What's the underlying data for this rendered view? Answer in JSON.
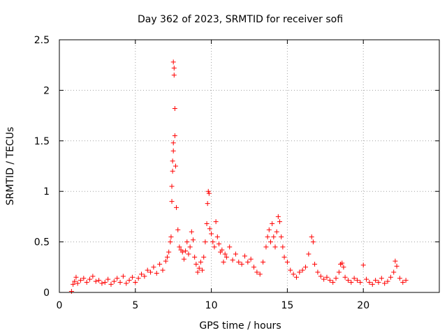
{
  "chart_data": {
    "type": "scatter",
    "title": "Day 362 of 2023, SRMTID for receiver sofi",
    "xlabel": "GPS time / hours",
    "ylabel": "SRMTID / TECUs",
    "xlim": [
      0,
      25
    ],
    "ylim": [
      0,
      2.5
    ],
    "xticks": [
      0,
      5,
      10,
      15,
      20
    ],
    "xtick_labels": [
      "0",
      "5",
      "10",
      "15",
      "20"
    ],
    "yticks": [
      0,
      0.5,
      1,
      1.5,
      2,
      2.5
    ],
    "ytick_labels": [
      "0",
      "0.5",
      "1",
      "1.5",
      "2",
      "2.5"
    ],
    "grid": true,
    "marker": "+",
    "color": "#ff0000",
    "series": [
      {
        "name": "SRMTID",
        "x": [
          0.8,
          0.9,
          1.0,
          1.1,
          1.2,
          1.4,
          1.6,
          1.8,
          2.0,
          2.2,
          2.4,
          2.6,
          2.8,
          3.0,
          3.2,
          3.4,
          3.6,
          3.8,
          4.0,
          4.2,
          4.4,
          4.6,
          4.8,
          5.0,
          5.2,
          5.4,
          5.6,
          5.8,
          6.0,
          6.2,
          6.4,
          6.6,
          6.8,
          7.0,
          7.1,
          7.2,
          7.3,
          7.35,
          7.4,
          7.4,
          7.45,
          7.45,
          7.5,
          7.5,
          7.5,
          7.55,
          7.55,
          7.6,
          7.6,
          7.65,
          7.7,
          7.8,
          7.9,
          8.0,
          8.1,
          8.2,
          8.3,
          8.4,
          8.5,
          8.6,
          8.7,
          8.8,
          8.9,
          9.0,
          9.1,
          9.2,
          9.3,
          9.4,
          9.5,
          9.6,
          9.7,
          9.75,
          9.8,
          9.85,
          9.9,
          10.0,
          10.1,
          10.2,
          10.3,
          10.4,
          10.5,
          10.6,
          10.7,
          10.8,
          10.9,
          11.0,
          11.2,
          11.4,
          11.6,
          11.8,
          12.0,
          12.2,
          12.4,
          12.6,
          12.8,
          13.0,
          13.2,
          13.4,
          13.6,
          13.7,
          13.8,
          13.9,
          14.0,
          14.1,
          14.2,
          14.3,
          14.4,
          14.5,
          14.6,
          14.7,
          14.8,
          15.0,
          15.2,
          15.4,
          15.6,
          15.8,
          16.0,
          16.2,
          16.4,
          16.6,
          16.7,
          16.8,
          17.0,
          17.2,
          17.4,
          17.6,
          17.8,
          18.0,
          18.2,
          18.4,
          18.5,
          18.6,
          18.7,
          18.8,
          19.0,
          19.2,
          19.4,
          19.6,
          19.8,
          20.0,
          20.2,
          20.4,
          20.6,
          20.8,
          21.0,
          21.2,
          21.4,
          21.6,
          21.8,
          22.0,
          22.1,
          22.2,
          22.4,
          22.6,
          22.8
        ],
        "y": [
          0.01,
          0.08,
          0.11,
          0.15,
          0.09,
          0.12,
          0.14,
          0.1,
          0.13,
          0.16,
          0.11,
          0.12,
          0.09,
          0.1,
          0.13,
          0.08,
          0.11,
          0.14,
          0.1,
          0.16,
          0.09,
          0.12,
          0.15,
          0.1,
          0.14,
          0.18,
          0.16,
          0.22,
          0.2,
          0.25,
          0.19,
          0.28,
          0.22,
          0.31,
          0.35,
          0.4,
          0.5,
          0.55,
          0.9,
          1.05,
          1.2,
          1.3,
          1.4,
          1.48,
          2.28,
          2.22,
          2.15,
          1.82,
          1.55,
          1.25,
          0.84,
          0.62,
          0.45,
          0.42,
          0.4,
          0.33,
          0.41,
          0.5,
          0.38,
          0.45,
          0.6,
          0.52,
          0.35,
          0.28,
          0.2,
          0.24,
          0.3,
          0.22,
          0.35,
          0.5,
          0.68,
          0.88,
          1.0,
          0.98,
          0.63,
          0.58,
          0.5,
          0.45,
          0.7,
          0.55,
          0.48,
          0.4,
          0.42,
          0.3,
          0.38,
          0.35,
          0.45,
          0.32,
          0.38,
          0.3,
          0.28,
          0.36,
          0.3,
          0.33,
          0.25,
          0.2,
          0.18,
          0.3,
          0.45,
          0.55,
          0.62,
          0.5,
          0.68,
          0.55,
          0.45,
          0.6,
          0.75,
          0.7,
          0.55,
          0.45,
          0.35,
          0.3,
          0.22,
          0.18,
          0.15,
          0.2,
          0.22,
          0.25,
          0.38,
          0.55,
          0.5,
          0.28,
          0.2,
          0.16,
          0.13,
          0.15,
          0.12,
          0.1,
          0.14,
          0.2,
          0.28,
          0.29,
          0.25,
          0.15,
          0.12,
          0.1,
          0.14,
          0.12,
          0.1,
          0.27,
          0.13,
          0.1,
          0.08,
          0.12,
          0.1,
          0.14,
          0.09,
          0.11,
          0.15,
          0.2,
          0.31,
          0.26,
          0.14,
          0.1,
          0.12
        ]
      }
    ]
  }
}
